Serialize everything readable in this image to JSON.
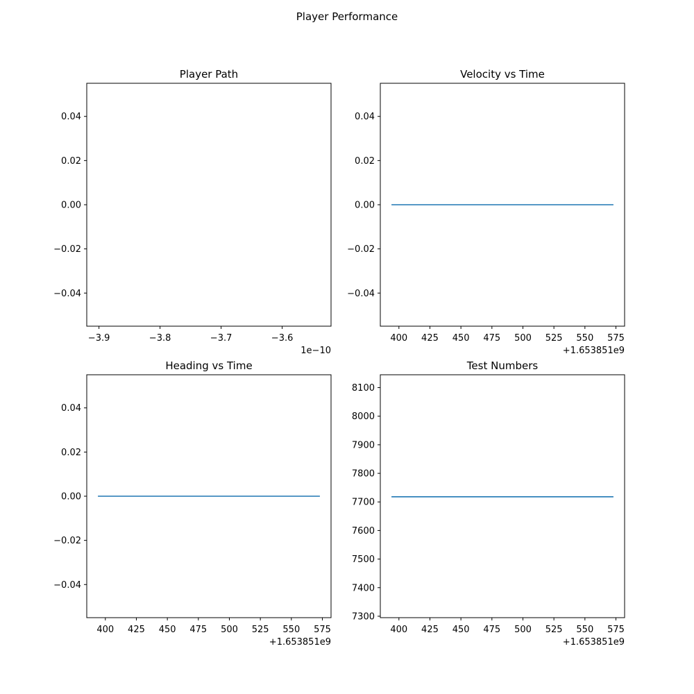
{
  "title": "Player Performance",
  "chart_data": [
    {
      "type": "line",
      "title": "Player Path",
      "xlabel": "",
      "ylabel": "",
      "xlim": [
        -3.92e-10,
        -3.52e-10
      ],
      "ylim": [
        -0.055,
        0.055
      ],
      "xticks": [
        -3.9e-10,
        -3.8e-10,
        -3.7e-10,
        -3.6e-10
      ],
      "xtick_labels": [
        "−3.9",
        "−3.8",
        "−3.7",
        "−3.6"
      ],
      "yticks": [
        -0.04,
        -0.02,
        0.0,
        0.02,
        0.04
      ],
      "ytick_labels": [
        "−0.04",
        "−0.02",
        "0.00",
        "0.02",
        "0.04"
      ],
      "x_offset_text": "1e−10",
      "grid": false,
      "legend": "none",
      "color": "#1f77b4",
      "series": [
        {
          "x": [],
          "y": []
        }
      ]
    },
    {
      "type": "line",
      "title": "Velocity vs Time",
      "xlabel": "",
      "ylabel": "",
      "xlim": [
        1653851385,
        1653851582
      ],
      "ylim": [
        -0.055,
        0.055
      ],
      "xticks": [
        1653851400,
        1653851425,
        1653851450,
        1653851475,
        1653851500,
        1653851525,
        1653851550,
        1653851575
      ],
      "xtick_labels": [
        "400",
        "425",
        "450",
        "475",
        "500",
        "525",
        "550",
        "575"
      ],
      "yticks": [
        -0.04,
        -0.02,
        0.0,
        0.02,
        0.04
      ],
      "ytick_labels": [
        "−0.04",
        "−0.02",
        "0.00",
        "0.02",
        "0.04"
      ],
      "x_offset_text": "+1.653851e9",
      "grid": false,
      "legend": "none",
      "color": "#1f77b4",
      "series": [
        {
          "x": [
            1653851394,
            1653851573
          ],
          "y": [
            0.0,
            0.0
          ]
        }
      ]
    },
    {
      "type": "line",
      "title": "Heading vs Time",
      "xlabel": "",
      "ylabel": "",
      "xlim": [
        1653851385,
        1653851582
      ],
      "ylim": [
        -0.055,
        0.055
      ],
      "xticks": [
        1653851400,
        1653851425,
        1653851450,
        1653851475,
        1653851500,
        1653851525,
        1653851550,
        1653851575
      ],
      "xtick_labels": [
        "400",
        "425",
        "450",
        "475",
        "500",
        "525",
        "550",
        "575"
      ],
      "yticks": [
        -0.04,
        -0.02,
        0.0,
        0.02,
        0.04
      ],
      "ytick_labels": [
        "−0.04",
        "−0.02",
        "0.00",
        "0.02",
        "0.04"
      ],
      "x_offset_text": "+1.653851e9",
      "grid": false,
      "legend": "none",
      "color": "#1f77b4",
      "series": [
        {
          "x": [
            1653851394,
            1653851573
          ],
          "y": [
            0.0,
            0.0
          ]
        }
      ]
    },
    {
      "type": "line",
      "title": "Test Numbers",
      "xlabel": "",
      "ylabel": "",
      "xlim": [
        1653851385,
        1653851582
      ],
      "ylim": [
        7295,
        8145
      ],
      "xticks": [
        1653851400,
        1653851425,
        1653851450,
        1653851475,
        1653851500,
        1653851525,
        1653851550,
        1653851575
      ],
      "xtick_labels": [
        "400",
        "425",
        "450",
        "475",
        "500",
        "525",
        "550",
        "575"
      ],
      "yticks": [
        7300,
        7400,
        7500,
        7600,
        7700,
        7800,
        7900,
        8000,
        8100
      ],
      "ytick_labels": [
        "7300",
        "7400",
        "7500",
        "7600",
        "7700",
        "7800",
        "7900",
        "8000",
        "8100"
      ],
      "x_offset_text": "+1.653851e9",
      "grid": false,
      "legend": "none",
      "color": "#1f77b4",
      "series": [
        {
          "x": [
            1653851394,
            1653851573
          ],
          "y": [
            7718,
            7718
          ]
        }
      ]
    }
  ]
}
